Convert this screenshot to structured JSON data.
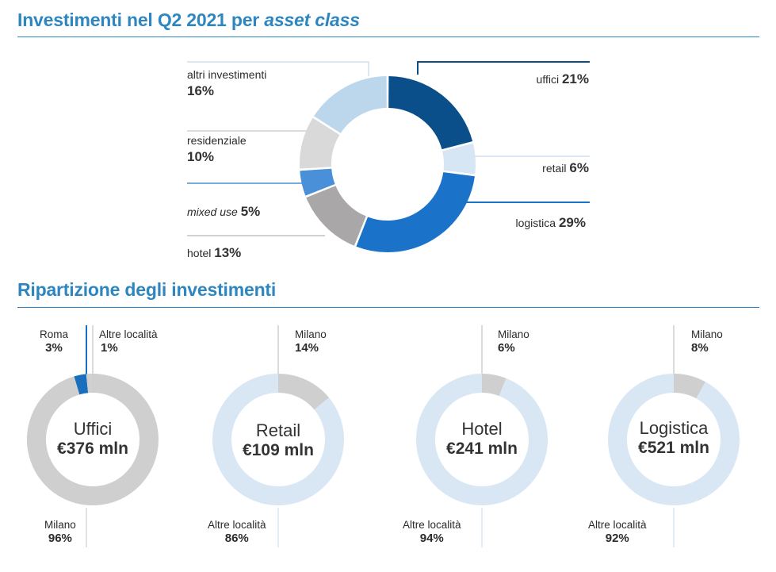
{
  "section1": {
    "title_prefix": "Investimenti nel Q2 2021 per ",
    "title_italic": "asset class"
  },
  "section2": {
    "title": "Ripartizione degli investimenti"
  },
  "chart_data": [
    {
      "type": "pie",
      "variant": "donut",
      "title": "Investimenti nel Q2 2021 per asset class",
      "unit": "%",
      "slices": [
        {
          "label": "uffici",
          "value": 21,
          "color": "#0b4f8a"
        },
        {
          "label": "retail",
          "value": 6,
          "color": "#d6e6f5"
        },
        {
          "label": "logistica",
          "value": 29,
          "color": "#1a73c8"
        },
        {
          "label": "hotel",
          "value": 13,
          "color": "#a9a7a8"
        },
        {
          "label": "mixed use",
          "value": 5,
          "color": "#4a90d9"
        },
        {
          "label": "residenziale",
          "value": 10,
          "color": "#d9d9d9"
        },
        {
          "label": "altri investimenti",
          "value": 16,
          "color": "#bcd7ec"
        }
      ],
      "pct_text": [
        "21%",
        "6%",
        "29%",
        "13%",
        "5%",
        "10%",
        "16%"
      ]
    },
    {
      "type": "pie",
      "variant": "donut",
      "title": "Ripartizione degli investimenti",
      "center_name": "Uffici",
      "center_value": "€376 mln",
      "slices": [
        {
          "label": "Milano",
          "value": 96,
          "color": "#cfcfcf"
        },
        {
          "label": "Roma",
          "value": 3,
          "color": "#1a6fbd"
        },
        {
          "label": "Altre località",
          "value": 1,
          "color": "#cfcfcf"
        }
      ],
      "pct_text": [
        "96%",
        "3%",
        "1%"
      ]
    },
    {
      "type": "pie",
      "variant": "donut",
      "title": "Ripartizione degli investimenti",
      "center_name": "Retail",
      "center_value": "€109 mln",
      "slices": [
        {
          "label": "Milano",
          "value": 14,
          "color": "#cfcfcf"
        },
        {
          "label": "Altre località",
          "value": 86,
          "color": "#d9e7f5"
        }
      ],
      "pct_text": [
        "14%",
        "86%"
      ]
    },
    {
      "type": "pie",
      "variant": "donut",
      "title": "Ripartizione degli investimenti",
      "center_name": "Hotel",
      "center_value": "€241 mln",
      "slices": [
        {
          "label": "Milano",
          "value": 6,
          "color": "#cfcfcf"
        },
        {
          "label": "Altre località",
          "value": 94,
          "color": "#d9e7f5"
        }
      ],
      "pct_text": [
        "6%",
        "94%"
      ]
    },
    {
      "type": "pie",
      "variant": "donut",
      "title": "Ripartizione degli investimenti",
      "center_name": "Logistica",
      "center_value": "€521 mln",
      "slices": [
        {
          "label": "Milano",
          "value": 8,
          "color": "#cfcfcf"
        },
        {
          "label": "Altre località",
          "value": 92,
          "color": "#d9e7f5"
        }
      ],
      "pct_text": [
        "8%",
        "92%"
      ]
    }
  ]
}
